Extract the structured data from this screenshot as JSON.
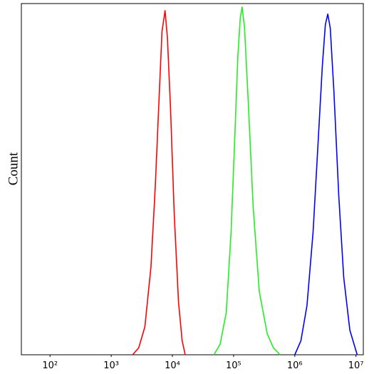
{
  "chart_data": {
    "type": "line",
    "y_label": "Count",
    "xscale": "log",
    "xlim": [
      34,
      13200000
    ],
    "ylim": [
      0,
      100
    ],
    "xticks": [
      {
        "value": 100,
        "label": "10²"
      },
      {
        "value": 1000,
        "label": "10³"
      },
      {
        "value": 10000,
        "label": "10⁴"
      },
      {
        "value": 100000,
        "label": "10⁵"
      },
      {
        "value": 1000000,
        "label": "10⁶"
      },
      {
        "value": 10000000,
        "label": "10⁷"
      }
    ],
    "series": [
      {
        "color": "#ff0000",
        "x": [
          2239,
          2818,
          3548,
          4467,
          5248,
          6026,
          6761,
          7586,
          8318,
          9333,
          10715,
          12589,
          14454,
          16218
        ],
        "values": [
          0,
          2,
          8,
          25,
          48,
          72,
          92,
          98,
          90,
          70,
          40,
          15,
          4,
          0
        ]
      },
      {
        "color": "#22ee22",
        "x": [
          47863,
          60256,
          75858,
          91201,
          104713,
          117490,
          128825,
          138038,
          151356,
          173780,
          208930,
          263027,
          354813,
          446684,
          575440
        ],
        "values": [
          0,
          3,
          12,
          35,
          62,
          85,
          96,
          99,
          93,
          72,
          42,
          18,
          6,
          2,
          0
        ]
      },
      {
        "color": "#0000ff",
        "x": [
          1000000,
          1258925,
          1584893,
          1995262,
          2398833,
          2818383,
          3162278,
          3467369,
          3801894,
          4365158,
          5248075,
          6309573,
          7943282,
          10471285
        ],
        "values": [
          0,
          4,
          14,
          35,
          60,
          82,
          94,
          97,
          93,
          75,
          45,
          22,
          7,
          0
        ]
      }
    ]
  }
}
